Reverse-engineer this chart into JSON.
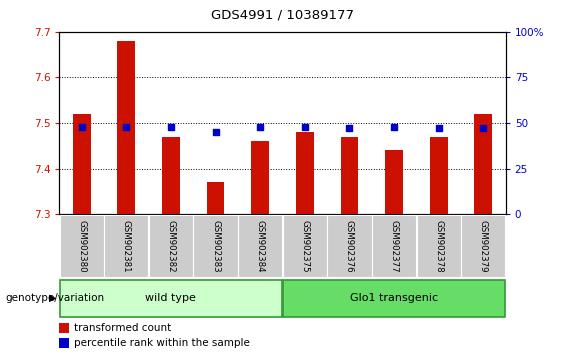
{
  "title": "GDS4991 / 10389177",
  "samples": [
    "GSM902380",
    "GSM902381",
    "GSM902382",
    "GSM902383",
    "GSM902384",
    "GSM902375",
    "GSM902376",
    "GSM902377",
    "GSM902378",
    "GSM902379"
  ],
  "red_values": [
    7.52,
    7.68,
    7.47,
    7.37,
    7.46,
    7.48,
    7.47,
    7.44,
    7.47,
    7.52
  ],
  "blue_values": [
    48,
    48,
    48,
    45,
    48,
    48,
    47,
    48,
    47,
    47
  ],
  "ylim_left": [
    7.3,
    7.7
  ],
  "ylim_right": [
    0,
    100
  ],
  "yticks_left": [
    7.3,
    7.4,
    7.5,
    7.6,
    7.7
  ],
  "yticks_right": [
    0,
    25,
    50,
    75,
    100
  ],
  "ytick_right_labels": [
    "0",
    "25",
    "50",
    "75",
    "100%"
  ],
  "red_color": "#cc1100",
  "blue_color": "#0000cc",
  "bar_width": 0.4,
  "wild_type_label": "wild type",
  "glo1_label": "Glo1 transgenic",
  "genotype_label": "genotype/variation",
  "legend_red": "transformed count",
  "legend_blue": "percentile rank within the sample",
  "group_bg_wild": "#ccffcc",
  "group_bg_glo1": "#66dd66",
  "group_border": "#339933",
  "tick_bg": "#cccccc",
  "tick_border": "#ffffff",
  "baseline": 7.3,
  "n_wild": 5,
  "n_glo1": 5
}
